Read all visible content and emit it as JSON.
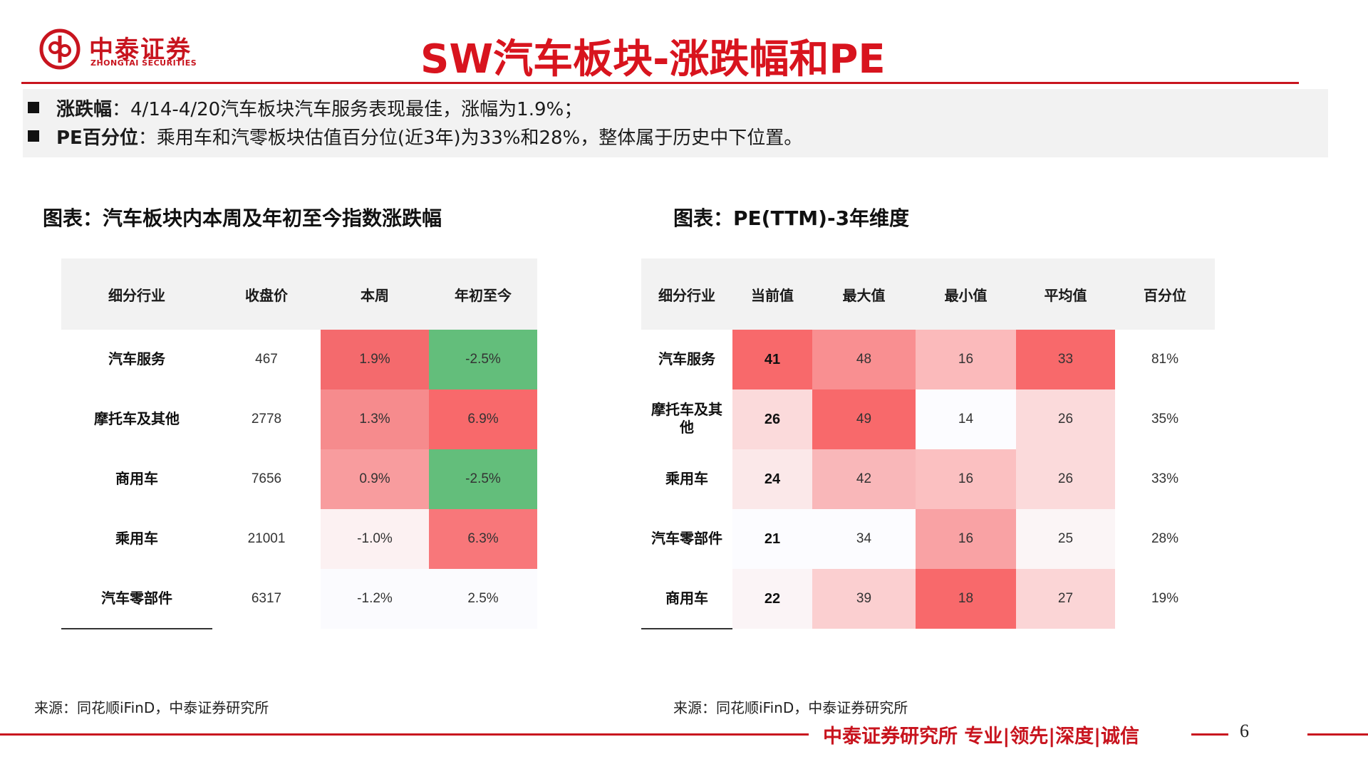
{
  "header": {
    "logo_cn": "中泰证券",
    "logo_en": "ZHONGTAI SECURITIES",
    "title": "SW汽车板块-涨跌幅和PE"
  },
  "summary": [
    {
      "key": "涨跌幅",
      "text": "：4/14-4/20汽车板块汽车服务表现最佳，涨幅为1.9%；"
    },
    {
      "key": "PE百分位",
      "text": "：乘用车和汽零板块估值百分位(近3年)为33%和28%，整体属于历史中下位置。"
    }
  ],
  "left_table": {
    "title": "图表：汽车板块内本周及年初至今指数涨跌幅",
    "headers": [
      "细分行业",
      "收盘价",
      "本周",
      "年初至今"
    ],
    "rows": [
      {
        "name": "汽车服务",
        "close": "467",
        "week": "1.9%",
        "ytd": "-2.5%",
        "week_color": "#f46a6d",
        "ytd_color": "#63be7b"
      },
      {
        "name": "摩托车及其他",
        "close": "2778",
        "week": "1.3%",
        "ytd": "6.9%",
        "week_color": "#f68b8d",
        "ytd_color": "#f8696b"
      },
      {
        "name": "商用车",
        "close": "7656",
        "week": "0.9%",
        "ytd": "-2.5%",
        "week_color": "#f89c9e",
        "ytd_color": "#63be7b"
      },
      {
        "name": "乘用车",
        "close": "21001",
        "week": "-1.0%",
        "ytd": "6.3%",
        "week_color": "#fcf1f2",
        "ytd_color": "#f8777a"
      },
      {
        "name": "汽车零部件",
        "close": "6317",
        "week": "-1.2%",
        "ytd": "2.5%",
        "week_color": "#fbfbfe",
        "ytd_color": "#fbfbfe"
      }
    ],
    "source": "来源：同花顺iFinD，中泰证券研究所"
  },
  "right_table": {
    "title": "图表：PE(TTM)-3年维度",
    "headers": [
      "细分行业",
      "当前值",
      "最大值",
      "最小值",
      "平均值",
      "百分位"
    ],
    "rows": [
      {
        "name": "汽车服务",
        "cur": "41",
        "max": "48",
        "min": "16",
        "avg": "33",
        "pct": "81%",
        "cur_color": "#f8696b",
        "max_color": "#f98f91",
        "min_color": "#fbbabb",
        "avg_color": "#f8696b"
      },
      {
        "name": "摩托车及其他",
        "cur": "26",
        "max": "49",
        "min": "14",
        "avg": "26",
        "pct": "35%",
        "cur_color": "#fbdadb",
        "max_color": "#f8696b",
        "min_color": "#fcfcff",
        "avg_color": "#fbdadb"
      },
      {
        "name": "乘用车",
        "cur": "24",
        "max": "42",
        "min": "16",
        "avg": "26",
        "pct": "33%",
        "cur_color": "#fbe8e9",
        "max_color": "#f9b7b9",
        "min_color": "#fbc0c1",
        "avg_color": "#fbdadb"
      },
      {
        "name": "汽车零部件",
        "cur": "21",
        "max": "34",
        "min": "16",
        "avg": "25",
        "pct": "28%",
        "cur_color": "#fcfcff",
        "max_color": "#fcfcff",
        "min_color": "#f9a2a4",
        "avg_color": "#fbf5f6"
      },
      {
        "name": "商用车",
        "cur": "22",
        "max": "39",
        "min": "18",
        "avg": "27",
        "pct": "19%",
        "cur_color": "#fbf4f6",
        "max_color": "#fbcfd0",
        "min_color": "#f8696b",
        "avg_color": "#fbd5d6"
      }
    ],
    "source": "来源：同花顺iFinD，中泰证券研究所"
  },
  "footer": {
    "slogan": "中泰证券研究所 专业|领先|深度|诚信",
    "page": "6"
  }
}
